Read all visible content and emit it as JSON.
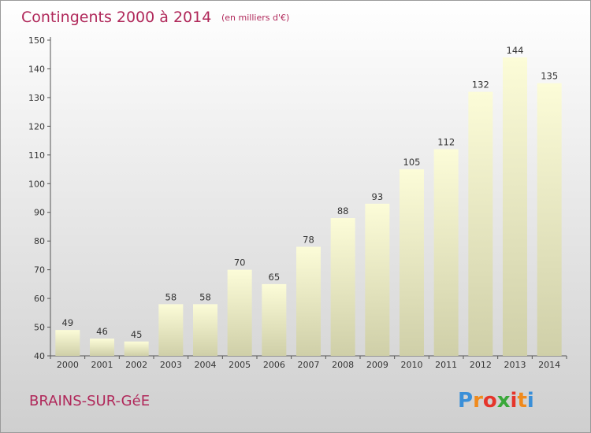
{
  "chart_data": {
    "type": "bar",
    "title": "Contingents 2000 à 2014",
    "subtitle": "(en milliers d'€)",
    "categories": [
      "2000",
      "2001",
      "2002",
      "2003",
      "2004",
      "2005",
      "2006",
      "2007",
      "2008",
      "2009",
      "2010",
      "2011",
      "2012",
      "2013",
      "2014"
    ],
    "values": [
      49,
      46,
      45,
      58,
      58,
      70,
      65,
      78,
      88,
      93,
      105,
      112,
      132,
      144,
      135
    ],
    "y_ticks": [
      "40",
      "50",
      "60",
      "70",
      "80",
      "90",
      "100",
      "110",
      "120",
      "130",
      "140",
      "150"
    ],
    "ylim": [
      40,
      150
    ],
    "xlabel": "",
    "ylabel": "",
    "grid": false,
    "bar_color_top": "#fcfcd8",
    "bar_color_bottom": "#cfcfa8"
  },
  "footer": {
    "commune": "BRAINS-SUR-GéE",
    "logo_letters": [
      "P",
      "r",
      "o",
      "x",
      "i",
      "t",
      "i"
    ],
    "logo_colors": [
      "#3a8fd8",
      "#f08a1c",
      "#e5352b",
      "#3aa83a",
      "#e5352b",
      "#f08a1c",
      "#3a8fd8"
    ]
  }
}
